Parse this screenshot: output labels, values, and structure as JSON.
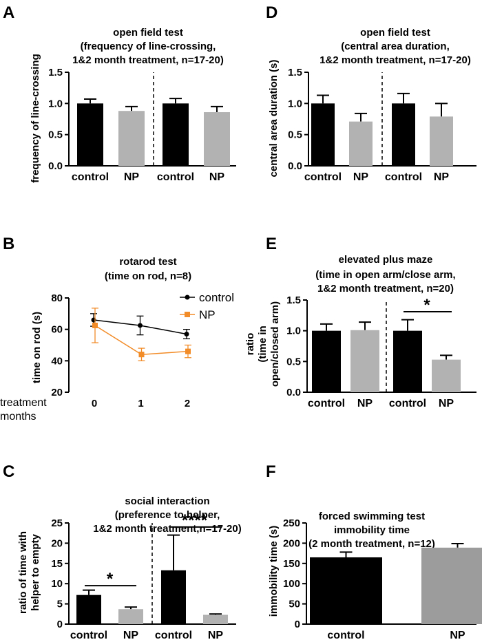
{
  "chart_data": [
    {
      "id": "A",
      "panel_label": "A",
      "type": "bar",
      "title_lines": [
        "open field test",
        "(frequency of line-crossing,",
        "1&2 month treatment, n=17-20)"
      ],
      "ylabel_lines": [
        "frequency of line-crossing"
      ],
      "ylim": [
        0,
        1.5
      ],
      "yticks": [
        "0.0",
        "0.5",
        "1.0",
        "1.5"
      ],
      "ytick_values": [
        0,
        0.5,
        1.0,
        1.5
      ],
      "divider_after": 1,
      "bars": [
        {
          "label": "control",
          "value": 1.0,
          "error": 0.07,
          "color": "#000000"
        },
        {
          "label": "NP",
          "value": 0.88,
          "error": 0.07,
          "color": "#b2b2b2"
        },
        {
          "label": "control",
          "value": 1.0,
          "error": 0.08,
          "color": "#000000"
        },
        {
          "label": "NP",
          "value": 0.86,
          "error": 0.09,
          "color": "#b2b2b2"
        }
      ],
      "significance": []
    },
    {
      "id": "D",
      "panel_label": "D",
      "type": "bar",
      "title_lines": [
        "open field test",
        "(central area duration,",
        "1&2 month treatment, n=17-20)"
      ],
      "ylabel_lines": [
        "central area duration (s)"
      ],
      "ylim": [
        0,
        1.5
      ],
      "yticks": [
        "0.0",
        "0.5",
        "1.0",
        "1.5"
      ],
      "ytick_values": [
        0,
        0.5,
        1.0,
        1.5
      ],
      "divider_after": 1,
      "bars": [
        {
          "label": "control",
          "value": 1.0,
          "error": 0.13,
          "color": "#000000"
        },
        {
          "label": "NP",
          "value": 0.71,
          "error": 0.13,
          "color": "#b2b2b2"
        },
        {
          "label": "control",
          "value": 1.0,
          "error": 0.16,
          "color": "#000000"
        },
        {
          "label": "NP",
          "value": 0.79,
          "error": 0.21,
          "color": "#b2b2b2"
        }
      ],
      "significance": []
    },
    {
      "id": "B",
      "panel_label": "B",
      "type": "line",
      "title_lines": [
        "rotarod test",
        "(time on rod, n=8)"
      ],
      "ylabel_lines": [
        "time on rod (s)"
      ],
      "ylim": [
        20,
        80
      ],
      "yticks": [
        "20",
        "40",
        "60",
        "80"
      ],
      "ytick_values": [
        20,
        40,
        60,
        80
      ],
      "x": [
        0,
        1,
        2
      ],
      "xticks": [
        "0",
        "1",
        "2"
      ],
      "xlabel_lines": [
        "treatment",
        "months"
      ],
      "series": [
        {
          "name": "control",
          "values": [
            66,
            62.5,
            57
          ],
          "errors": [
            4,
            6,
            3
          ],
          "color": "#000000",
          "marker": "circle"
        },
        {
          "name": "NP",
          "values": [
            62.5,
            44,
            46
          ],
          "errors": [
            11,
            4,
            4
          ],
          "color": "#f28c28",
          "marker": "square"
        }
      ]
    },
    {
      "id": "E",
      "panel_label": "E",
      "type": "bar",
      "title_lines": [
        "elevated plus maze",
        "(time in open arm/close arm,",
        "1&2 month treatment, n=20)"
      ],
      "ylabel_lines": [
        "ratio",
        "(time in",
        "open/closed arm)"
      ],
      "ylim": [
        0,
        1.5
      ],
      "yticks": [
        "0.0",
        "0.5",
        "1.0",
        "1.5"
      ],
      "ytick_values": [
        0,
        0.5,
        1.0,
        1.5
      ],
      "divider_after": 1,
      "bars": [
        {
          "label": "control",
          "value": 1.0,
          "error": 0.11,
          "color": "#000000"
        },
        {
          "label": "NP",
          "value": 1.01,
          "error": 0.13,
          "color": "#b2b2b2"
        },
        {
          "label": "control",
          "value": 1.0,
          "error": 0.18,
          "color": "#000000"
        },
        {
          "label": "NP",
          "value": 0.53,
          "error": 0.07,
          "color": "#b2b2b2"
        }
      ],
      "significance": [
        {
          "from": 2,
          "to": 3,
          "level": 1.31,
          "text": "*"
        }
      ]
    },
    {
      "id": "C",
      "panel_label": "C",
      "type": "bar",
      "title_lines": [
        "social interaction",
        "(preference to helper,",
        "1&2 month treatment,n=17-20)"
      ],
      "ylabel_lines": [
        "ratio of time with",
        "helper to empty"
      ],
      "ylim": [
        0,
        25
      ],
      "yticks": [
        "0",
        "5",
        "10",
        "15",
        "20",
        "25"
      ],
      "ytick_values": [
        0,
        5,
        10,
        15,
        20,
        25
      ],
      "divider_after": 1,
      "bars": [
        {
          "label": "control",
          "value": 7.2,
          "error": 1.2,
          "color": "#000000"
        },
        {
          "label": "NP",
          "value": 3.7,
          "error": 0.5,
          "color": "#b2b2b2"
        },
        {
          "label": "control",
          "value": 13.3,
          "error": 8.7,
          "color": "#000000"
        },
        {
          "label": "NP",
          "value": 2.3,
          "error": 0.2,
          "color": "#b2b2b2"
        }
      ],
      "significance": [
        {
          "from": 0,
          "to": 1,
          "level": 9.5,
          "text": "*"
        },
        {
          "from": 2,
          "to": 3,
          "level": 24.0,
          "text": "****"
        }
      ]
    },
    {
      "id": "F",
      "panel_label": "F",
      "type": "bar",
      "title_lines": [
        "forced swimming test",
        "immobility time",
        "(2 month treatment, n=12)"
      ],
      "ylabel_lines": [
        "immobility time (s)"
      ],
      "ylim": [
        0,
        250
      ],
      "yticks": [
        "0",
        "50",
        "100",
        "150",
        "200",
        "250"
      ],
      "ytick_values": [
        0,
        50,
        100,
        150,
        200,
        250
      ],
      "divider_after": null,
      "bars": [
        {
          "label": "control",
          "value": 165,
          "error": 13,
          "color": "#000000"
        },
        {
          "label": "NP",
          "value": 189,
          "error": 10,
          "color": "#9c9c9c"
        }
      ],
      "significance": []
    }
  ]
}
